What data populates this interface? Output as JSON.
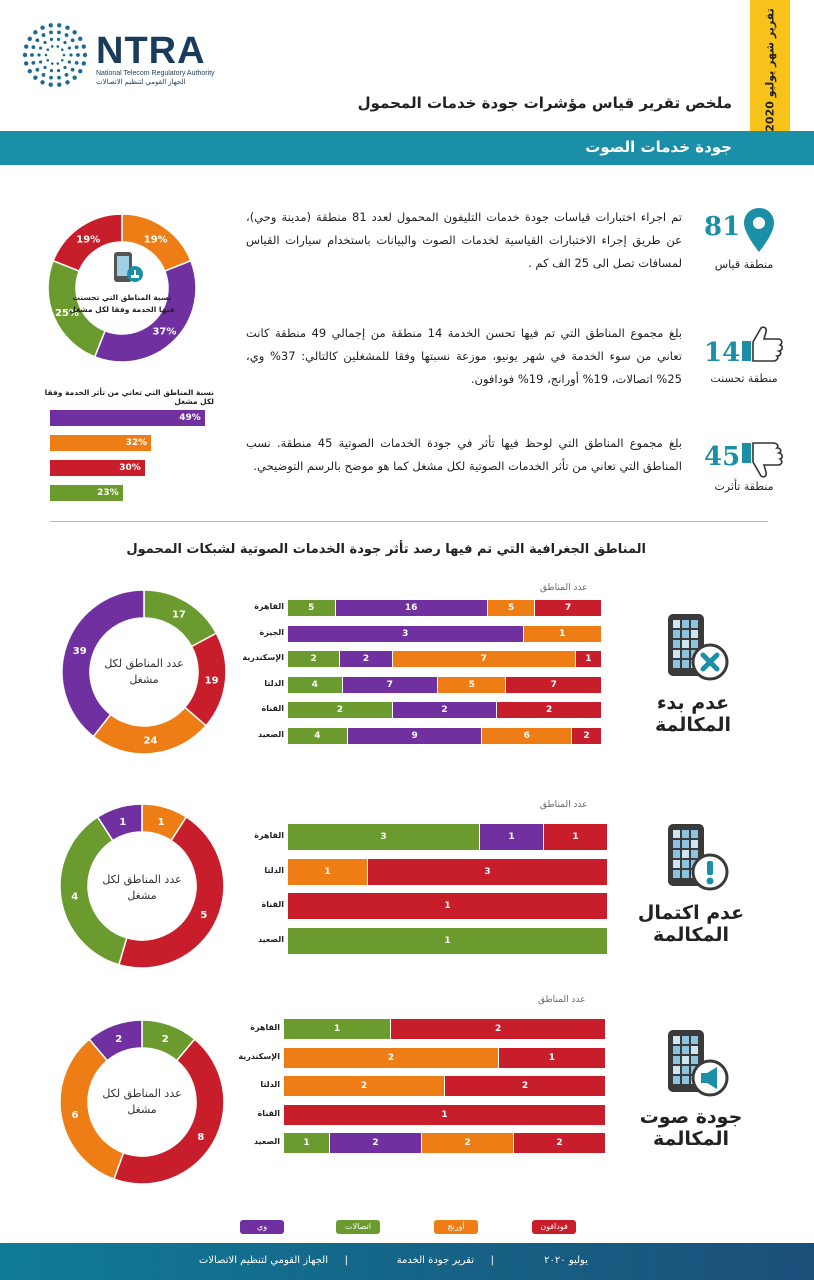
{
  "colors": {
    "etisalat": "#6b9b2e",
    "we": "#7030a0",
    "orange": "#ef7d15",
    "vodafone": "#c81e2b",
    "teal": "#1b8ea8",
    "yellow": "#f7c31a"
  },
  "header": {
    "logo_text": "NTRA",
    "logo_en": "National Telecom Regulatory Authority",
    "logo_ar": "الجهاز القومي لتنظيم الاتصالات",
    "report_tab": "تقرير شهر يوليو 2020",
    "main_title": "ملخص تقرير قياس مؤشرات جودة خدمات المحمول",
    "section_title": "جودة خدمات الصوت"
  },
  "stats": [
    {
      "number": "81",
      "label": "منطقة قياس",
      "icon": "location-pin-icon",
      "text": "تم اجراء اختبارات قياسات جودة خدمات التليفون المحمول لعدد 81 منطقة (مدينة وحي)، عن طريق إجراء الاختبارات القياسية لخدمات الصوت والبيانات باستخدام سيارات القياس لمسافات تصل الى 25 الف كم ."
    },
    {
      "number": "14",
      "label": "منطقة تحسنت",
      "icon": "thumbs-up-icon",
      "text": "بلغ مجموع المناطق التي تم فيها تحسن الخدمة 14 منطقة من إجمالي 49 منطقة كانت تعاني من سوء الخدمة في شهر يونيو، موزعة نسبتها وفقا للمشغلين كالتالي: 37% وي، 25% اتصالات، 19% أورانج، 19% فودافون."
    },
    {
      "number": "45",
      "label": "منطقة تأثرت",
      "icon": "thumbs-down-icon",
      "text": "بلغ مجموع المناطق التي لوحظ فيها تأثر في جودة الخدمات الصوتية 45 منطقة. نسب المناطق التي تعاني من تأثر الخدمات الصوتية لكل مشغل كما هو موضح بالرسم التوضيحي."
    }
  ],
  "chart_data": [
    {
      "type": "pie",
      "title": "نسبة المناطق التي تحسنت فيها الخدمة وفقا لكل مشغل",
      "labels": [
        "أورنج",
        "وي",
        "اتصالات",
        "فودافون"
      ],
      "values": [
        19,
        37,
        25,
        19
      ],
      "value_labels": [
        "19%",
        "37%",
        "25%",
        "19%"
      ],
      "colors": [
        "#ef7d15",
        "#7030a0",
        "#6b9b2e",
        "#c81e2b"
      ]
    },
    {
      "type": "bar",
      "title": "نسبة المناطق التي تعاني من تأثر الخدمة وفقا لكل مشغل",
      "categories": [
        "وي",
        "أورنج",
        "فودافون",
        "اتصالات"
      ],
      "values": [
        49,
        32,
        30,
        23
      ],
      "value_labels": [
        "49%",
        "32%",
        "30%",
        "23%"
      ],
      "colors": [
        "#7030a0",
        "#ef7d15",
        "#c81e2b",
        "#6b9b2e"
      ]
    },
    {
      "type": "pie",
      "title": "عدم بدء المكالمة",
      "center_label": "عدد المناطق لكل مشغل",
      "labels": [
        "اتصالات",
        "فودافون",
        "أورنج",
        "وي"
      ],
      "values": [
        17,
        19,
        24,
        39
      ],
      "colors": [
        "#6b9b2e",
        "#c81e2b",
        "#ef7d15",
        "#7030a0"
      ]
    },
    {
      "type": "bar",
      "title": "عدم بدء المكالمة",
      "axis_caption": "عدد المناطق",
      "categories": [
        "القاهرة",
        "الجيزة",
        "الإسكندرية",
        "الدلتا",
        "القناة",
        "الصعيد"
      ],
      "series": [
        {
          "name": "اتصالات",
          "values": [
            5,
            0,
            2,
            4,
            2,
            4
          ]
        },
        {
          "name": "وي",
          "values": [
            16,
            3,
            2,
            7,
            2,
            9
          ]
        },
        {
          "name": "أورنج",
          "values": [
            5,
            1,
            7,
            5,
            0,
            6
          ]
        },
        {
          "name": "فودافون",
          "values": [
            7,
            0,
            1,
            7,
            2,
            2
          ]
        }
      ]
    },
    {
      "type": "pie",
      "title": "عدم اكتمال المكالمة",
      "center_label": "عدد المناطق لكل مشغل",
      "labels": [
        "أورنج",
        "فودافون",
        "اتصالات",
        "وي"
      ],
      "values": [
        1,
        5,
        4,
        1
      ],
      "colors": [
        "#ef7d15",
        "#c81e2b",
        "#6b9b2e",
        "#7030a0"
      ]
    },
    {
      "type": "bar",
      "title": "عدم اكتمال المكالمة",
      "axis_caption": "عدد المناطق",
      "categories": [
        "القاهرة",
        "الدلتا",
        "القناة",
        "الصعيد"
      ],
      "series": [
        {
          "name": "اتصالات",
          "values": [
            3,
            0,
            0,
            1
          ]
        },
        {
          "name": "وي",
          "values": [
            1,
            0,
            0,
            0
          ]
        },
        {
          "name": "أورنج",
          "values": [
            0,
            1,
            0,
            0
          ]
        },
        {
          "name": "فودافون",
          "values": [
            1,
            3,
            1,
            0
          ]
        }
      ]
    },
    {
      "type": "pie",
      "title": "جودة صوت المكالمة",
      "center_label": "عدد المناطق لكل مشغل",
      "labels": [
        "اتصالات",
        "فودافون",
        "أورنج",
        "وي"
      ],
      "values": [
        2,
        8,
        6,
        2
      ],
      "colors": [
        "#6b9b2e",
        "#c81e2b",
        "#ef7d15",
        "#7030a0"
      ]
    },
    {
      "type": "bar",
      "title": "جودة صوت المكالمة",
      "axis_caption": "عدد المناطق",
      "categories": [
        "القاهرة",
        "الإسكندرية",
        "الدلتا",
        "القناة",
        "الصعيد"
      ],
      "series": [
        {
          "name": "اتصالات",
          "values": [
            1,
            0,
            0,
            0,
            1
          ]
        },
        {
          "name": "وي",
          "values": [
            0,
            0,
            0,
            0,
            2
          ]
        },
        {
          "name": "أورنج",
          "values": [
            0,
            2,
            2,
            0,
            2
          ]
        },
        {
          "name": "فودافون",
          "values": [
            2,
            1,
            2,
            1,
            2
          ]
        }
      ]
    }
  ],
  "charts_section_title": "المناطق الجغرافية التي تم فيها رصد تأثر جودة الخدمات الصوتية لشبكات المحمول",
  "side_labels": [
    "عدم بدء المكالمة",
    "عدم اكتمال المكالمة",
    "جودة صوت المكالمة"
  ],
  "legend": [
    {
      "name": "وي",
      "color": "#7030a0"
    },
    {
      "name": "اتصالات",
      "color": "#6b9b2e"
    },
    {
      "name": "أورنج",
      "color": "#ef7d15"
    },
    {
      "name": "فودافون",
      "color": "#c81e2b"
    }
  ],
  "footer": {
    "org": "الجهاز القومي لتنظيم الاتصالات",
    "sep": "|",
    "report": "تقرير جودة الخدمة",
    "date": "يوليو ٢٠٢٠"
  }
}
